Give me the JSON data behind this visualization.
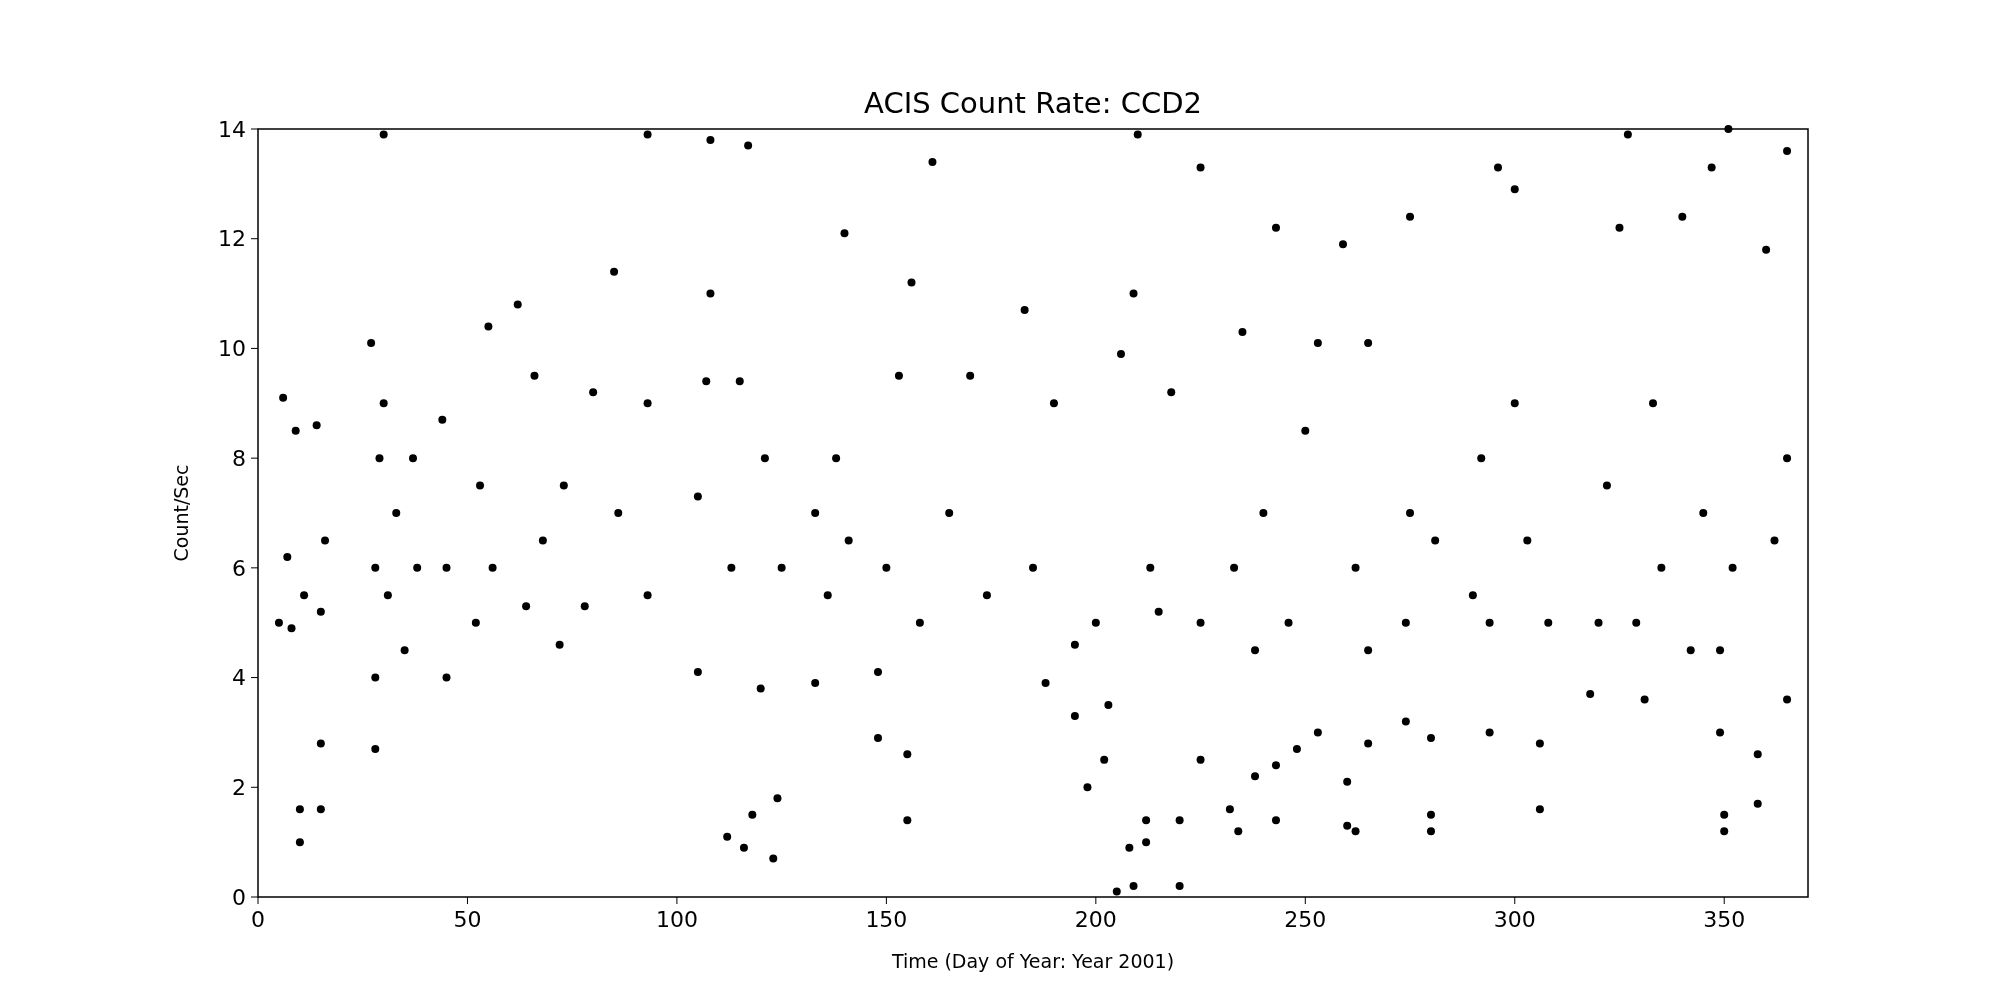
{
  "chart_data": {
    "type": "scatter",
    "title": "ACIS Count Rate: CCD2",
    "xlabel": "Time (Day of Year: Year 2001)",
    "ylabel": "Count/Sec",
    "xlim": [
      0,
      370
    ],
    "xticks": [
      0,
      50,
      100,
      150,
      200,
      250,
      300,
      350
    ],
    "ylim": [
      0,
      14
    ],
    "yticks": [
      0,
      2,
      4,
      6,
      8,
      10,
      12,
      14
    ],
    "grid": false,
    "marker": "circle",
    "series": [
      {
        "color": "#000000",
        "x": [
          5,
          6,
          7,
          8,
          9,
          10,
          10,
          11,
          14,
          15,
          15,
          15,
          16,
          27,
          28,
          28,
          28,
          29,
          30,
          30,
          31,
          33,
          35,
          37,
          38,
          44,
          45,
          45,
          52,
          53,
          55,
          56,
          62,
          64,
          66,
          68,
          72,
          73,
          78,
          80,
          85,
          86,
          93,
          93,
          93,
          105,
          105,
          107,
          108,
          108,
          112,
          113,
          115,
          116,
          117,
          118,
          120,
          121,
          123,
          124,
          125,
          133,
          133,
          136,
          138,
          140,
          141,
          148,
          148,
          150,
          153,
          155,
          155,
          156,
          158,
          161,
          165,
          170,
          174,
          183,
          185,
          188,
          190,
          195,
          195,
          198,
          200,
          202,
          203,
          205,
          206,
          208,
          209,
          209,
          210,
          212,
          212,
          213,
          215,
          218,
          220,
          220,
          225,
          225,
          225,
          232,
          234,
          233,
          235,
          238,
          238,
          240,
          243,
          243,
          243,
          246,
          248,
          250,
          253,
          253,
          259,
          260,
          260,
          262,
          262,
          265,
          265,
          265,
          274,
          274,
          275,
          275,
          280,
          280,
          280,
          281,
          290,
          292,
          294,
          294,
          296,
          300,
          300,
          303,
          306,
          306,
          308,
          318,
          320,
          322,
          325,
          327,
          329,
          331,
          333,
          335,
          340,
          342,
          345,
          347,
          349,
          349,
          350,
          350,
          351,
          352,
          358,
          358,
          360,
          362,
          365,
          365,
          365
        ],
        "values": [
          5,
          9.1,
          6.2,
          4.9,
          8.5,
          1.0,
          1.6,
          5.5,
          8.6,
          5.2,
          1.6,
          2.8,
          6.5,
          10.1,
          2.7,
          4,
          6,
          8,
          13.9,
          9,
          5.5,
          7,
          4.5,
          8,
          6,
          8.7,
          4,
          6,
          5,
          7.5,
          10.4,
          6,
          10.8,
          5.3,
          9.5,
          6.5,
          4.6,
          7.5,
          5.3,
          9.2,
          11.4,
          7,
          5.5,
          13.9,
          9,
          4.1,
          7.3,
          9.4,
          13.8,
          11,
          1.1,
          6,
          9.4,
          0.9,
          13.7,
          1.5,
          3.8,
          8,
          0.7,
          1.8,
          6,
          3.9,
          7,
          5.5,
          8,
          12.1,
          6.5,
          2.9,
          4.1,
          6,
          9.5,
          1.4,
          2.6,
          11.2,
          5,
          13.4,
          7,
          9.5,
          5.5,
          10.7,
          6,
          3.9,
          9,
          3.3,
          4.6,
          2,
          5,
          2.5,
          3.5,
          0.1,
          9.9,
          0.9,
          0.2,
          11,
          13.9,
          1.0,
          1.4,
          6,
          5.2,
          9.2,
          0.2,
          1.4,
          2.5,
          5,
          13.3,
          1.6,
          1.2,
          6,
          10.3,
          2.2,
          4.5,
          7,
          12.2,
          1.4,
          2.4,
          5,
          2.7,
          8.5,
          3,
          10.1,
          11.9,
          2.1,
          1.3,
          1.2,
          6,
          2.8,
          4.5,
          10.1,
          3.2,
          5,
          12.4,
          7,
          1.2,
          1.5,
          2.9,
          6.5,
          5.5,
          8,
          3,
          5,
          13.3,
          12.9,
          9,
          6.5,
          1.6,
          2.8,
          5,
          3.7,
          5,
          7.5,
          12.2,
          13.9,
          5,
          3.6,
          9,
          6,
          12.4,
          4.5,
          7,
          13.3,
          3,
          4.5,
          1.2,
          1.5,
          14,
          6,
          1.7,
          2.6,
          11.8,
          6.5,
          3.6,
          13.6,
          8
        ]
      }
    ]
  }
}
